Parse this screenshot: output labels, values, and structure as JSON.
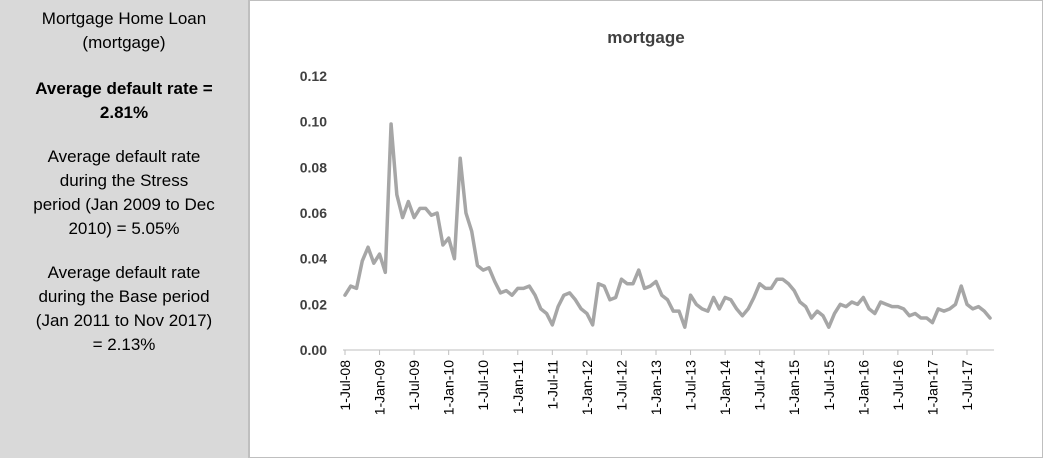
{
  "panel": {
    "line1": "Mortgage Home Loan",
    "line2": "(mortgage)",
    "avg_line1": "Average default rate =",
    "avg_line2": "2.81%",
    "stress_line1": "Average default rate",
    "stress_line2": "during the Stress",
    "stress_line3": "period (Jan 2009 to Dec",
    "stress_line4": "2010) = 5.05%",
    "base_line1": "Average default rate",
    "base_line2": "during the Base period",
    "base_line3": "(Jan 2011 to Nov 2017)",
    "base_line4": "= 2.13%"
  },
  "chart_data": {
    "type": "line",
    "title": "mortgage",
    "xlabel": "",
    "ylabel": "",
    "ylim": [
      0,
      0.12
    ],
    "yticks": [
      "0.00",
      "0.02",
      "0.04",
      "0.06",
      "0.08",
      "0.10",
      "0.12"
    ],
    "xticks": [
      "1-Jul-08",
      "1-Jan-09",
      "1-Jul-09",
      "1-Jan-10",
      "1-Jul-10",
      "1-Jan-11",
      "1-Jul-11",
      "1-Jan-12",
      "1-Jul-12",
      "1-Jan-13",
      "1-Jul-13",
      "1-Jan-14",
      "1-Jul-14",
      "1-Jan-15",
      "1-Jul-15",
      "1-Jan-16",
      "1-Jul-16",
      "1-Jan-17",
      "1-Jul-17"
    ],
    "grid": false,
    "legend": "none",
    "line_color": "#a6a6a6",
    "start": "1-Jul-08",
    "interval": "monthly",
    "values": [
      0.024,
      0.028,
      0.027,
      0.039,
      0.045,
      0.038,
      0.042,
      0.034,
      0.099,
      0.068,
      0.058,
      0.065,
      0.058,
      0.062,
      0.062,
      0.059,
      0.06,
      0.046,
      0.049,
      0.04,
      0.084,
      0.06,
      0.052,
      0.037,
      0.035,
      0.036,
      0.03,
      0.025,
      0.026,
      0.024,
      0.027,
      0.027,
      0.028,
      0.024,
      0.018,
      0.016,
      0.011,
      0.019,
      0.024,
      0.025,
      0.022,
      0.018,
      0.016,
      0.011,
      0.029,
      0.028,
      0.022,
      0.023,
      0.031,
      0.029,
      0.029,
      0.035,
      0.027,
      0.028,
      0.03,
      0.024,
      0.022,
      0.017,
      0.017,
      0.01,
      0.024,
      0.02,
      0.018,
      0.017,
      0.023,
      0.018,
      0.023,
      0.022,
      0.018,
      0.015,
      0.018,
      0.023,
      0.029,
      0.027,
      0.027,
      0.031,
      0.031,
      0.029,
      0.026,
      0.021,
      0.019,
      0.014,
      0.017,
      0.015,
      0.01,
      0.016,
      0.02,
      0.019,
      0.021,
      0.02,
      0.023,
      0.018,
      0.016,
      0.021,
      0.02,
      0.019,
      0.019,
      0.018,
      0.015,
      0.016,
      0.014,
      0.014,
      0.012,
      0.018,
      0.017,
      0.018,
      0.02,
      0.028,
      0.02,
      0.018,
      0.019,
      0.017,
      0.014
    ]
  }
}
